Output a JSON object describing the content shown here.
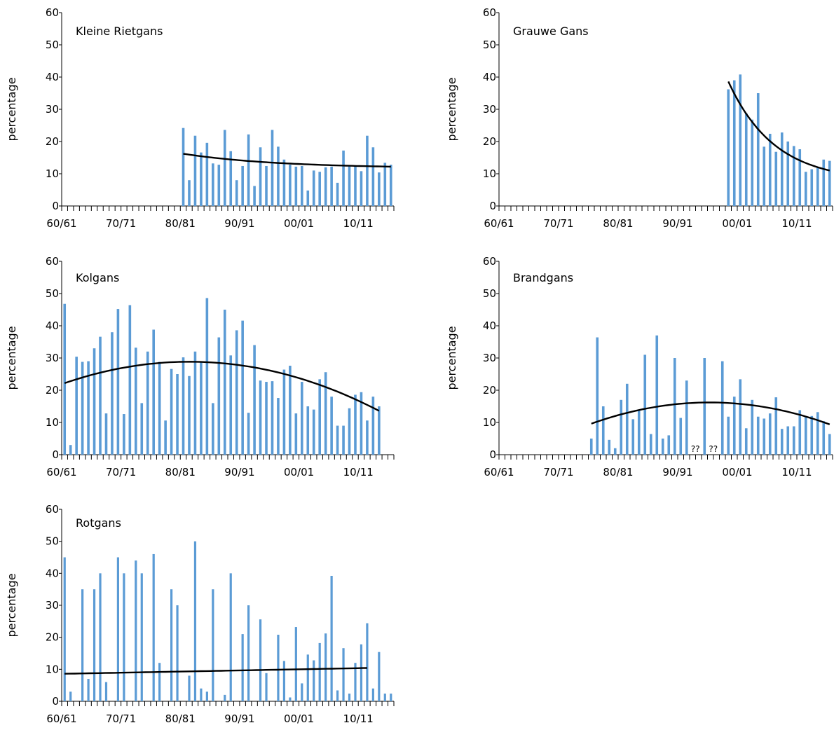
{
  "colors": {
    "bar": "#5b9bd5",
    "trend": "#000000",
    "axis": "#000000"
  },
  "chart_data": [
    {
      "type": "bar",
      "title": "Kleine Rietgans",
      "ylabel": "percentage",
      "ylim": [
        0,
        60
      ],
      "yticks": [
        "0",
        "10",
        "20",
        "30",
        "40",
        "50",
        "60"
      ],
      "xticks": [
        "60/61",
        "70/71",
        "80/81",
        "90/91",
        "00/01",
        "10/11"
      ],
      "x_start": "60/61",
      "values": [
        null,
        null,
        null,
        null,
        null,
        null,
        null,
        null,
        null,
        null,
        null,
        null,
        null,
        null,
        null,
        null,
        null,
        null,
        null,
        null,
        24.2,
        8.0,
        21.8,
        16.6,
        19.6,
        13.2,
        12.8,
        23.6,
        17.0,
        8.0,
        12.4,
        22.2,
        6.2,
        18.2,
        12.4,
        23.6,
        18.4,
        14.4,
        12.8,
        12.2,
        12.4,
        4.8,
        11.0,
        10.6,
        12.0,
        12.2,
        7.2,
        17.2,
        12.4,
        12.4,
        10.8,
        21.8,
        18.2,
        10.4,
        13.4,
        12.8
      ],
      "trend": [
        16.2,
        12.2
      ]
    },
    {
      "type": "bar",
      "title": "Grauwe Gans",
      "ylabel": "percentage",
      "ylim": [
        0,
        60
      ],
      "yticks": [
        "0",
        "10",
        "20",
        "30",
        "40",
        "50",
        "60"
      ],
      "xticks": [
        "60/61",
        "70/71",
        "80/81",
        "90/91",
        "00/01",
        "10/11"
      ],
      "x_start": "60/61",
      "values": [
        null,
        null,
        null,
        null,
        null,
        null,
        null,
        null,
        null,
        null,
        null,
        null,
        null,
        null,
        null,
        null,
        null,
        null,
        null,
        null,
        null,
        null,
        null,
        null,
        null,
        null,
        null,
        null,
        null,
        null,
        null,
        null,
        null,
        null,
        null,
        null,
        null,
        null,
        36.2,
        39.0,
        40.8,
        28.8,
        26.8,
        35.0,
        18.4,
        22.4,
        16.8,
        22.8,
        20.0,
        18.6,
        17.6,
        10.6,
        11.4,
        11.8,
        14.4,
        14.0
      ],
      "trend": [
        38.6,
        11.0
      ]
    },
    {
      "type": "bar",
      "title": "Kolgans",
      "ylabel": "percentage",
      "ylim": [
        0,
        60
      ],
      "yticks": [
        "0",
        "10",
        "20",
        "30",
        "40",
        "50",
        "60"
      ],
      "xticks": [
        "60/61",
        "70/71",
        "80/81",
        "90/91",
        "00/01",
        "10/11"
      ],
      "x_start": "60/61",
      "values": [
        46.8,
        3.0,
        30.4,
        28.8,
        29.0,
        33.0,
        36.6,
        12.8,
        38.0,
        45.2,
        12.6,
        46.4,
        33.2,
        16.0,
        32.0,
        38.8,
        28.8,
        10.6,
        26.6,
        25.0,
        30.2,
        24.4,
        32.0,
        28.8,
        48.6,
        16.0,
        36.4,
        45.0,
        30.8,
        38.6,
        41.6,
        13.0,
        34.0,
        23.0,
        22.6,
        22.8,
        17.6,
        26.4,
        27.6,
        12.8,
        22.6,
        15.0,
        14.0,
        23.4,
        25.6,
        18.0,
        9.0,
        9.0,
        14.4,
        18.6,
        19.4,
        10.6,
        18.0,
        15.0
      ],
      "trend": [
        22.2,
        28.4,
        13.6
      ]
    },
    {
      "type": "bar",
      "title": "Brandgans",
      "ylabel": "percentage",
      "ylim": [
        0,
        60
      ],
      "yticks": [
        "0",
        "10",
        "20",
        "30",
        "40",
        "50",
        "60"
      ],
      "xticks": [
        "60/61",
        "70/71",
        "80/81",
        "90/91",
        "00/01",
        "10/11"
      ],
      "x_start": "60/61",
      "annotations": [
        "??",
        "??"
      ],
      "values": [
        null,
        null,
        null,
        null,
        null,
        null,
        null,
        null,
        null,
        null,
        null,
        null,
        null,
        null,
        null,
        5.0,
        36.4,
        15.0,
        4.6,
        2.0,
        17.0,
        22.0,
        11.0,
        13.6,
        31.0,
        6.4,
        37.0,
        5.0,
        6.0,
        30.0,
        11.4,
        23.0,
        null,
        null,
        30.0,
        null,
        null,
        29.0,
        11.8,
        18.0,
        23.4,
        8.2,
        17.0,
        11.8,
        11.2,
        12.8,
        17.8,
        8.0,
        8.8,
        8.8,
        13.8,
        11.8,
        12.0,
        13.2,
        10.4,
        6.4
      ],
      "trend": [
        9.6,
        16.2,
        9.4
      ]
    },
    {
      "type": "bar",
      "title": "Rotgans",
      "ylabel": "percentage",
      "ylim": [
        0,
        60
      ],
      "yticks": [
        "0",
        "10",
        "20",
        "30",
        "40",
        "50",
        "60"
      ],
      "xticks": [
        "60/61",
        "70/71",
        "80/81",
        "90/91",
        "00/01",
        "10/11"
      ],
      "x_start": "60/61",
      "values": [
        45.0,
        3.0,
        null,
        35.0,
        7.0,
        35.0,
        40.0,
        6.0,
        null,
        45.0,
        40.0,
        null,
        44.0,
        40.0,
        null,
        46.0,
        12.0,
        null,
        35.0,
        30.0,
        null,
        8.0,
        50.0,
        4.0,
        3.0,
        35.0,
        null,
        2.0,
        40.0,
        null,
        21.0,
        30.0,
        null,
        25.6,
        8.8,
        null,
        20.8,
        12.6,
        1.2,
        23.2,
        5.6,
        14.6,
        12.8,
        18.2,
        21.2,
        39.2,
        3.4,
        16.6,
        2.4,
        12.0,
        17.8,
        24.4,
        4.0,
        15.4,
        2.4,
        2.4
      ],
      "trend": [
        8.6,
        10.4
      ]
    }
  ]
}
